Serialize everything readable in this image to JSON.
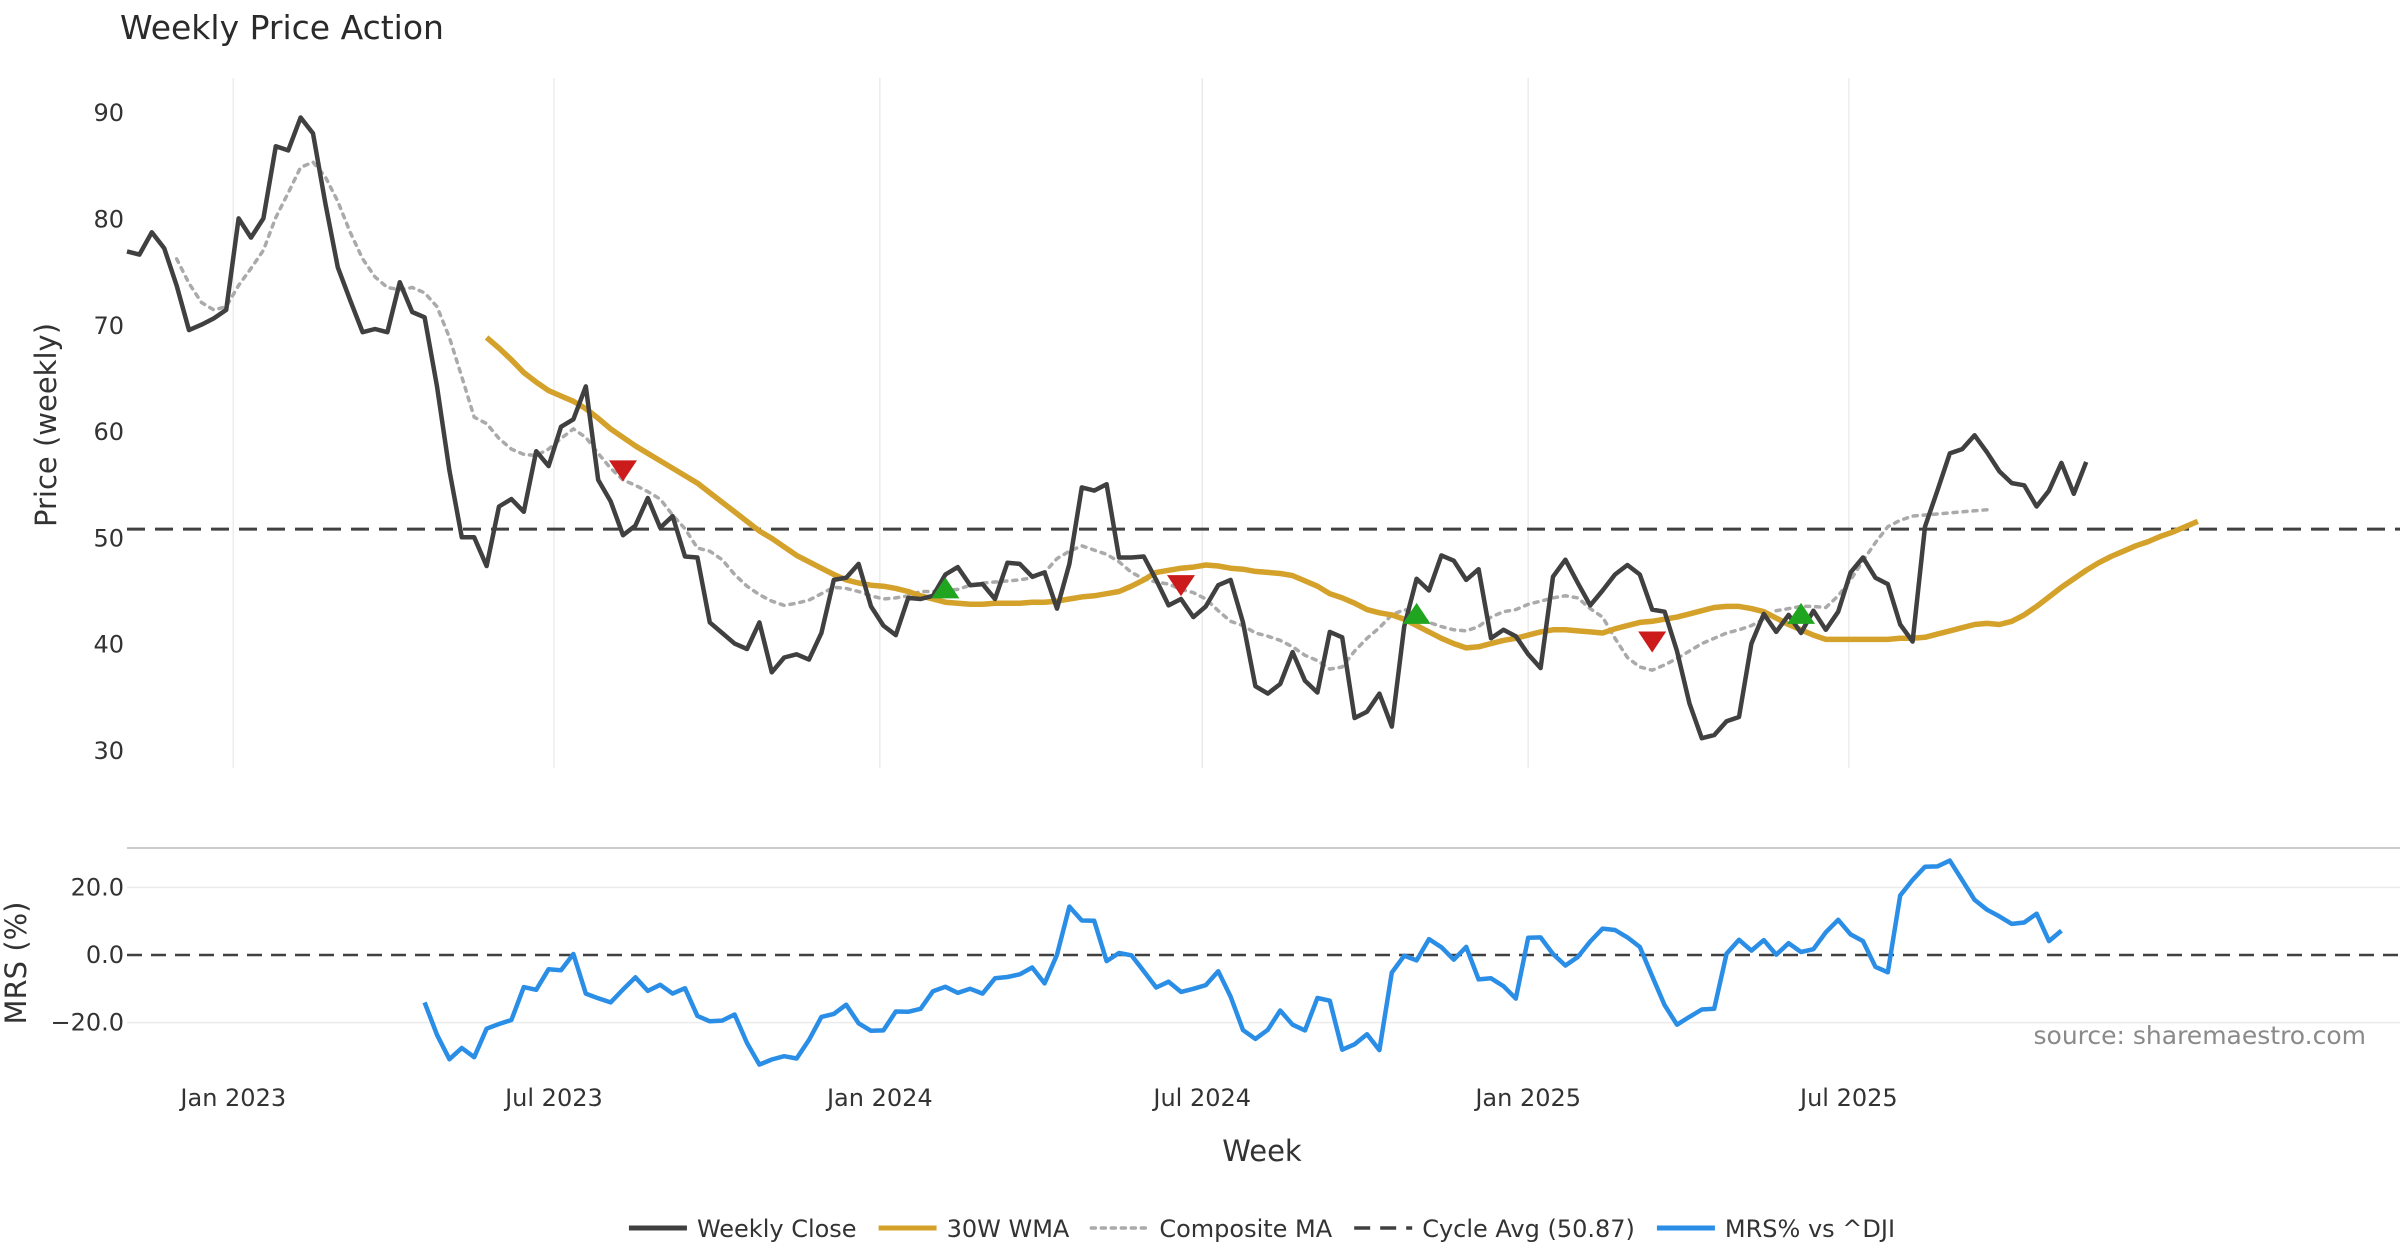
{
  "chart_data": [
    {
      "panel": "price",
      "type": "line",
      "title": "Weekly Price Action",
      "ylabel": "Price (weekly)",
      "ylim": [
        28,
        92
      ],
      "yticks": [
        30,
        40,
        50,
        60,
        70,
        80,
        90
      ],
      "grid": "vertical",
      "x_start": "2022-11-07",
      "x_step_days": 7,
      "series": [
        {
          "name": "Weekly Close",
          "color": "#404040",
          "values": [
            77,
            76.7,
            78.8,
            77.3,
            73.8,
            69.6,
            70.1,
            70.7,
            71.5,
            80.1,
            78.3,
            80.1,
            86.9,
            86.5,
            89.6,
            88.1,
            81.5,
            75.5,
            72.4,
            69.4,
            69.7,
            69.4,
            74.1,
            71.3,
            70.8,
            64.3,
            56.4,
            50.1,
            50.1,
            47.4,
            53,
            53.7,
            52.5,
            58.2,
            56.8,
            60.5,
            61.2,
            64.3,
            55.5,
            53.5,
            50.3,
            51.2,
            53.8,
            51,
            52.1,
            48.3,
            48.2,
            42.1,
            41.1,
            40.1,
            39.6,
            42.1,
            37.4,
            38.8,
            39.1,
            38.6,
            41.1,
            46.1,
            46.3,
            47.6,
            43.6,
            41.8,
            40.9,
            44.4,
            44.3,
            44.6,
            46.6,
            47.3,
            45.6,
            45.7,
            44.3,
            47.7,
            47.6,
            46.4,
            46.8,
            43.4,
            47.6,
            54.8,
            54.5,
            55.1,
            48.2,
            48.2,
            48.3,
            46.1,
            43.7,
            44.3,
            42.6,
            43.6,
            45.6,
            46.1,
            42.1,
            36.1,
            35.4,
            36.3,
            39.3,
            36.6,
            35.5,
            41.2,
            40.7,
            33.1,
            33.7,
            35.4,
            32.3,
            41.7,
            46.2,
            45.1,
            48.4,
            47.9,
            46.1,
            47.1,
            40.6,
            41.4,
            40.8,
            39.1,
            37.8,
            46.4,
            48,
            45.8,
            43.7,
            45.1,
            46.6,
            47.5,
            46.6,
            43.3,
            43.1,
            39.4,
            34.5,
            31.2,
            31.5,
            32.8,
            33.2,
            40.1,
            42.9,
            41.2,
            42.8,
            41.1,
            43.2,
            41.4,
            43.1,
            46.8,
            48.2,
            46.3,
            45.7,
            41.9,
            40.3,
            51.1,
            54.5,
            58,
            58.4,
            59.7,
            58.1,
            56.3,
            55.2,
            55,
            53,
            54.5,
            57.1,
            54.2,
            57.2
          ]
        },
        {
          "name": "30W WMA",
          "color": "#d4a22b",
          "start_index": 29,
          "values": [
            68.9,
            67.9,
            66.8,
            65.6,
            64.7,
            63.9,
            63.4,
            62.9,
            62.2,
            61.3,
            60.3,
            59.5,
            58.7,
            58,
            57.3,
            56.6,
            55.9,
            55.2,
            54.3,
            53.4,
            52.5,
            51.6,
            50.7,
            50,
            49.2,
            48.4,
            47.8,
            47.2,
            46.6,
            46.1,
            45.8,
            45.6,
            45.5,
            45.3,
            45,
            44.6,
            44.3,
            44,
            43.9,
            43.8,
            43.8,
            43.9,
            43.9,
            43.9,
            44,
            44,
            44.1,
            44.3,
            44.5,
            44.6,
            44.8,
            45,
            45.5,
            46.1,
            46.8,
            47,
            47.2,
            47.3,
            47.5,
            47.4,
            47.2,
            47.1,
            46.9,
            46.8,
            46.7,
            46.5,
            46,
            45.5,
            44.8,
            44.4,
            43.9,
            43.3,
            43,
            42.8,
            42.4,
            41.8,
            41.2,
            40.6,
            40.1,
            39.7,
            39.8,
            40.1,
            40.4,
            40.6,
            40.9,
            41.2,
            41.4,
            41.4,
            41.3,
            41.2,
            41.1,
            41.5,
            41.8,
            42.1,
            42.2,
            42.4,
            42.6,
            42.9,
            43.2,
            43.5,
            43.6,
            43.6,
            43.4,
            43.1,
            42.5,
            41.9,
            41.4,
            40.9,
            40.5,
            40.5,
            40.5,
            40.5,
            40.5,
            40.5,
            40.6,
            40.6,
            40.7,
            41,
            41.3,
            41.6,
            41.9,
            42,
            41.9,
            42.2,
            42.8,
            43.6,
            44.5,
            45.4,
            46.2,
            47,
            47.7,
            48.3,
            48.8,
            49.3,
            49.7,
            50.2,
            50.6,
            51.1,
            51.6
          ]
        },
        {
          "name": "Composite MA",
          "color": "#aaaaaa",
          "start_index": 4,
          "values": [
            76.3,
            74,
            72.2,
            71.5,
            71.8,
            73.8,
            75.4,
            77.1,
            80.2,
            82.5,
            84.9,
            85.4,
            84,
            81.7,
            78.8,
            76.3,
            74.6,
            73.6,
            73.4,
            73.6,
            73.1,
            71.8,
            68.9,
            65.2,
            61.4,
            60.8,
            59.4,
            58.4,
            57.9,
            57.8,
            58.4,
            59.4,
            60.3,
            59.5,
            58,
            56.6,
            55.5,
            55,
            54.4,
            53.7,
            52.2,
            50.9,
            49.1,
            48.8,
            48,
            46.6,
            45.5,
            44.7,
            44.1,
            43.7,
            43.9,
            44.2,
            44.8,
            45.4,
            45.3,
            45,
            44.6,
            44.3,
            44.4,
            44.6,
            45,
            45,
            45.1,
            45.2,
            45.6,
            45.8,
            45.9,
            46,
            46.1,
            46.3,
            46.8,
            48.1,
            48.8,
            49.3,
            48.9,
            48.5,
            47.8,
            46.8,
            46.2,
            45.9,
            45.7,
            45.2,
            44.9,
            44.3,
            43.2,
            42.2,
            41.8,
            41.1,
            40.8,
            40.4,
            39.8,
            39,
            38.5,
            37.7,
            37.9,
            39.4,
            40.6,
            41.6,
            42.8,
            43.3,
            43,
            42.1,
            41.7,
            41.4,
            41.3,
            41.7,
            42.6,
            43.1,
            43.3,
            43.8,
            44.1,
            44.4,
            44.6,
            44.4,
            43.4,
            42.6,
            40.6,
            38.8,
            37.9,
            37.6,
            38.1,
            38.7,
            39.4,
            40.1,
            40.6,
            41.1,
            41.4,
            41.8,
            42.4,
            43.2,
            43.4,
            43.6,
            43.6,
            43.5,
            44.6,
            46.1,
            47.9,
            49.6,
            51.1,
            51.7,
            52.1,
            52.2,
            52.3,
            52.4,
            52.5,
            52.6,
            52.7
          ]
        },
        {
          "name": "Cycle Avg (50.87)",
          "color": "#404040",
          "constant": 50.87
        }
      ],
      "markers": [
        {
          "type": "sell",
          "index": 40,
          "value": 56.4,
          "color": "#cc1b1b"
        },
        {
          "type": "buy",
          "index": 66,
          "value": 45.3,
          "color": "#1fa51f"
        },
        {
          "type": "sell",
          "index": 85,
          "value": 45.6,
          "color": "#cc1b1b"
        },
        {
          "type": "buy",
          "index": 104,
          "value": 42.9,
          "color": "#1fa51f"
        },
        {
          "type": "sell",
          "index": 123,
          "value": 40.3,
          "color": "#cc1b1b"
        },
        {
          "type": "buy",
          "index": 135,
          "value": 42.9,
          "color": "#1fa51f"
        }
      ]
    },
    {
      "panel": "mrs",
      "type": "line",
      "ylabel": "MRS (%)",
      "xlabel": "Week",
      "ylim": [
        -33,
        33
      ],
      "yticks": [
        20.0,
        0.0,
        -20.0
      ],
      "ytick_labels": [
        "20.0",
        "0.0",
        "−20.0"
      ],
      "reference_line": 0,
      "series": [
        {
          "name": "MRS% vs ^DJI",
          "color": "#2b8ee6",
          "start_index": 24,
          "values": [
            -14,
            -23.6,
            -30.8,
            -27.5,
            -30.2,
            -21.8,
            -20.4,
            -19.2,
            -9.5,
            -10.3,
            -4.2,
            -4.5,
            0.3,
            -11.4,
            -12.8,
            -14,
            -10.2,
            -6.6,
            -10.6,
            -8.8,
            -11.4,
            -9.8,
            -18,
            -19.6,
            -19.4,
            -17.6,
            -26,
            -32.4,
            -30.9,
            -29.9,
            -30.6,
            -25.1,
            -18.3,
            -17.4,
            -14.7,
            -20.2,
            -22.4,
            -22.3,
            -16.7,
            -16.8,
            -15.9,
            -10.7,
            -9.4,
            -11.2,
            -10,
            -11.4,
            -6.9,
            -6.5,
            -5.7,
            -3.7,
            -8.4,
            0.1,
            14.3,
            10.2,
            10.1,
            -1.8,
            0.6,
            -0.1,
            -4.8,
            -9.6,
            -7.9,
            -10.9,
            -10,
            -8.9,
            -4.8,
            -12.3,
            -22.2,
            -24.8,
            -22.1,
            -16.4,
            -20.6,
            -22.3,
            -12.7,
            -13.5,
            -28,
            -26.4,
            -23.4,
            -28.1,
            -5.2,
            -0.2,
            -1.6,
            4.7,
            2.3,
            -1.4,
            2.4,
            -7.2,
            -6.9,
            -9.2,
            -12.9,
            5.1,
            5.2,
            0.3,
            -3.1,
            -0.6,
            4,
            7.8,
            7.4,
            5.2,
            2.4,
            -6.3,
            -14.8,
            -20.6,
            -18.3,
            -16.1,
            -15.9,
            0.4,
            4.5,
            1.3,
            4.4,
            0.1,
            3.5,
            0.9,
            1.7,
            6.7,
            10.4,
            6.1,
            4.1,
            -3.5,
            -5.1,
            17.6,
            22.2,
            26.1,
            26.2,
            27.9,
            22.1,
            16.3,
            13.4,
            11.4,
            9.2,
            9.6,
            12.2,
            4.1,
            7.2
          ]
        }
      ]
    }
  ],
  "x_axis": {
    "xlabel": "Week",
    "ticks": [
      {
        "label": "Jan 2023",
        "index": 8.57
      },
      {
        "label": "Jul 2023",
        "index": 34.43
      },
      {
        "label": "Jan 2024",
        "index": 60.71
      },
      {
        "label": "Jul 2024",
        "index": 86.71
      },
      {
        "label": "Jan 2025",
        "index": 113
      },
      {
        "label": "Jul 2025",
        "index": 138.86
      }
    ]
  },
  "legend": {
    "placement": "bottom",
    "items": [
      {
        "label": "Weekly Close",
        "color": "#404040",
        "style": "solid"
      },
      {
        "label": "30W WMA",
        "color": "#d4a22b",
        "style": "solid"
      },
      {
        "label": "Composite MA",
        "color": "#aaaaaa",
        "style": "dotted"
      },
      {
        "label": "Cycle Avg (50.87)",
        "color": "#404040",
        "style": "dashed"
      },
      {
        "label": "MRS% vs ^DJI",
        "color": "#2b8ee6",
        "style": "solid"
      }
    ]
  },
  "source_note": "source: sharemaestro.com"
}
